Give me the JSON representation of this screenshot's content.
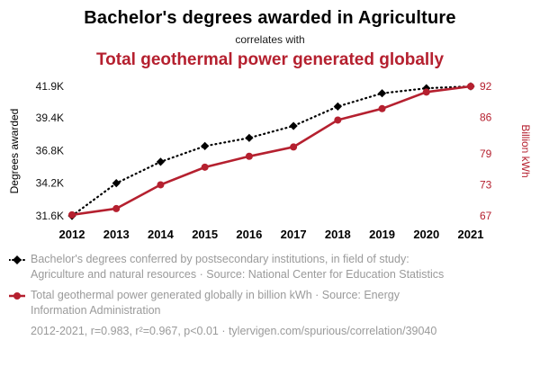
{
  "header": {
    "title": "Bachelor's degrees awarded in Agriculture",
    "subtitle": "correlates with",
    "title2": "Total geothermal power generated globally"
  },
  "colors": {
    "accent": "#b5202f",
    "ink": "#000000",
    "muted": "#9a9a9a"
  },
  "chart_data": {
    "type": "line",
    "x": [
      2012,
      2013,
      2014,
      2015,
      2016,
      2017,
      2018,
      2019,
      2020,
      2021
    ],
    "x_ticks": [
      "2012",
      "2013",
      "2014",
      "2015",
      "2016",
      "2017",
      "2018",
      "2019",
      "2020",
      "2021"
    ],
    "series": [
      {
        "name": "Bachelor's degrees conferred by postsecondary institutions, in field of study: Agriculture and natural resources",
        "axis": "left",
        "color": "#000000",
        "style": "dotted-diamond",
        "values": [
          31600,
          34200,
          35900,
          37150,
          37800,
          38750,
          40300,
          41350,
          41750,
          41900
        ]
      },
      {
        "name": "Total geothermal power generated globally",
        "axis": "right",
        "color": "#b5202f",
        "style": "solid-circle",
        "values": [
          67.2,
          68.4,
          73.0,
          76.4,
          78.5,
          80.3,
          85.5,
          87.7,
          90.9,
          92.0
        ]
      }
    ],
    "left_axis": {
      "label": "Degrees awarded",
      "ticks": [
        "31.6K",
        "34.2K",
        "36.8K",
        "39.4K",
        "41.9K"
      ],
      "tick_values": [
        31600,
        34200,
        36800,
        39400,
        41900
      ],
      "range": [
        31600,
        41900
      ]
    },
    "right_axis": {
      "label": "Billion kWh",
      "ticks": [
        "67",
        "73",
        "79",
        "86",
        "92"
      ],
      "tick_values": [
        67,
        73,
        79,
        86,
        92
      ],
      "range": [
        67,
        92
      ]
    },
    "grid": false,
    "legend_position": "bottom"
  },
  "legend": [
    {
      "marker": "black-dotted-diamond",
      "text": "Bachelor's degrees conferred by postsecondary institutions, in field of study: Agriculture and natural resources · Source: National Center for Education Statistics"
    },
    {
      "marker": "red-solid-circle",
      "text": "Total geothermal power generated globally in billion kWh · Source: Energy Information Administration"
    }
  ],
  "footer": "2012-2021, r=0.983, r²=0.967, p<0.01 · tylervigen.com/spurious/correlation/39040"
}
